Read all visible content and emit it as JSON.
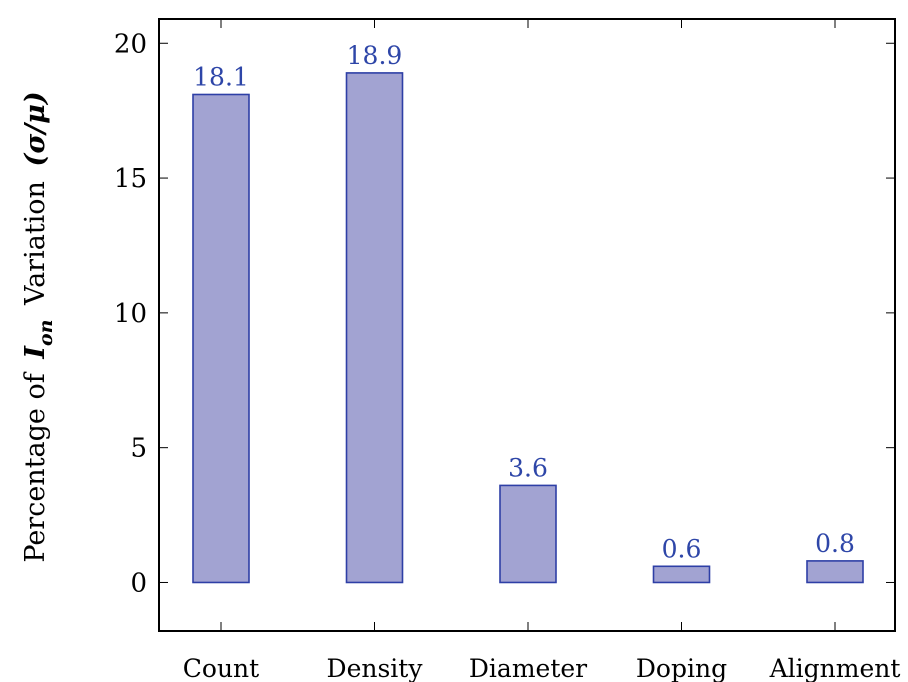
{
  "chart_data": {
    "type": "bar",
    "categories": [
      "Count",
      "Density",
      "Diameter",
      "Doping",
      "Alignment"
    ],
    "values": [
      18.1,
      18.9,
      3.6,
      0.6,
      0.8
    ],
    "data_labels": [
      "18.1",
      "18.9",
      "3.6",
      "0.6",
      "0.8"
    ],
    "ylabel": {
      "prefix": "Percentage of",
      "symbol": "I",
      "symbol_sub": "on",
      "suffix": "Variation",
      "formula": "(σ/μ)"
    },
    "yticks": [
      0,
      5,
      10,
      15,
      20
    ],
    "ylim": [
      -1.8,
      20.9
    ],
    "grid": false,
    "legend": "none"
  },
  "colors": {
    "bar_fill": "#a2a3d2",
    "bar_stroke": "#2e3fa6",
    "data_label": "#2e46a8",
    "axis": "#000000"
  }
}
